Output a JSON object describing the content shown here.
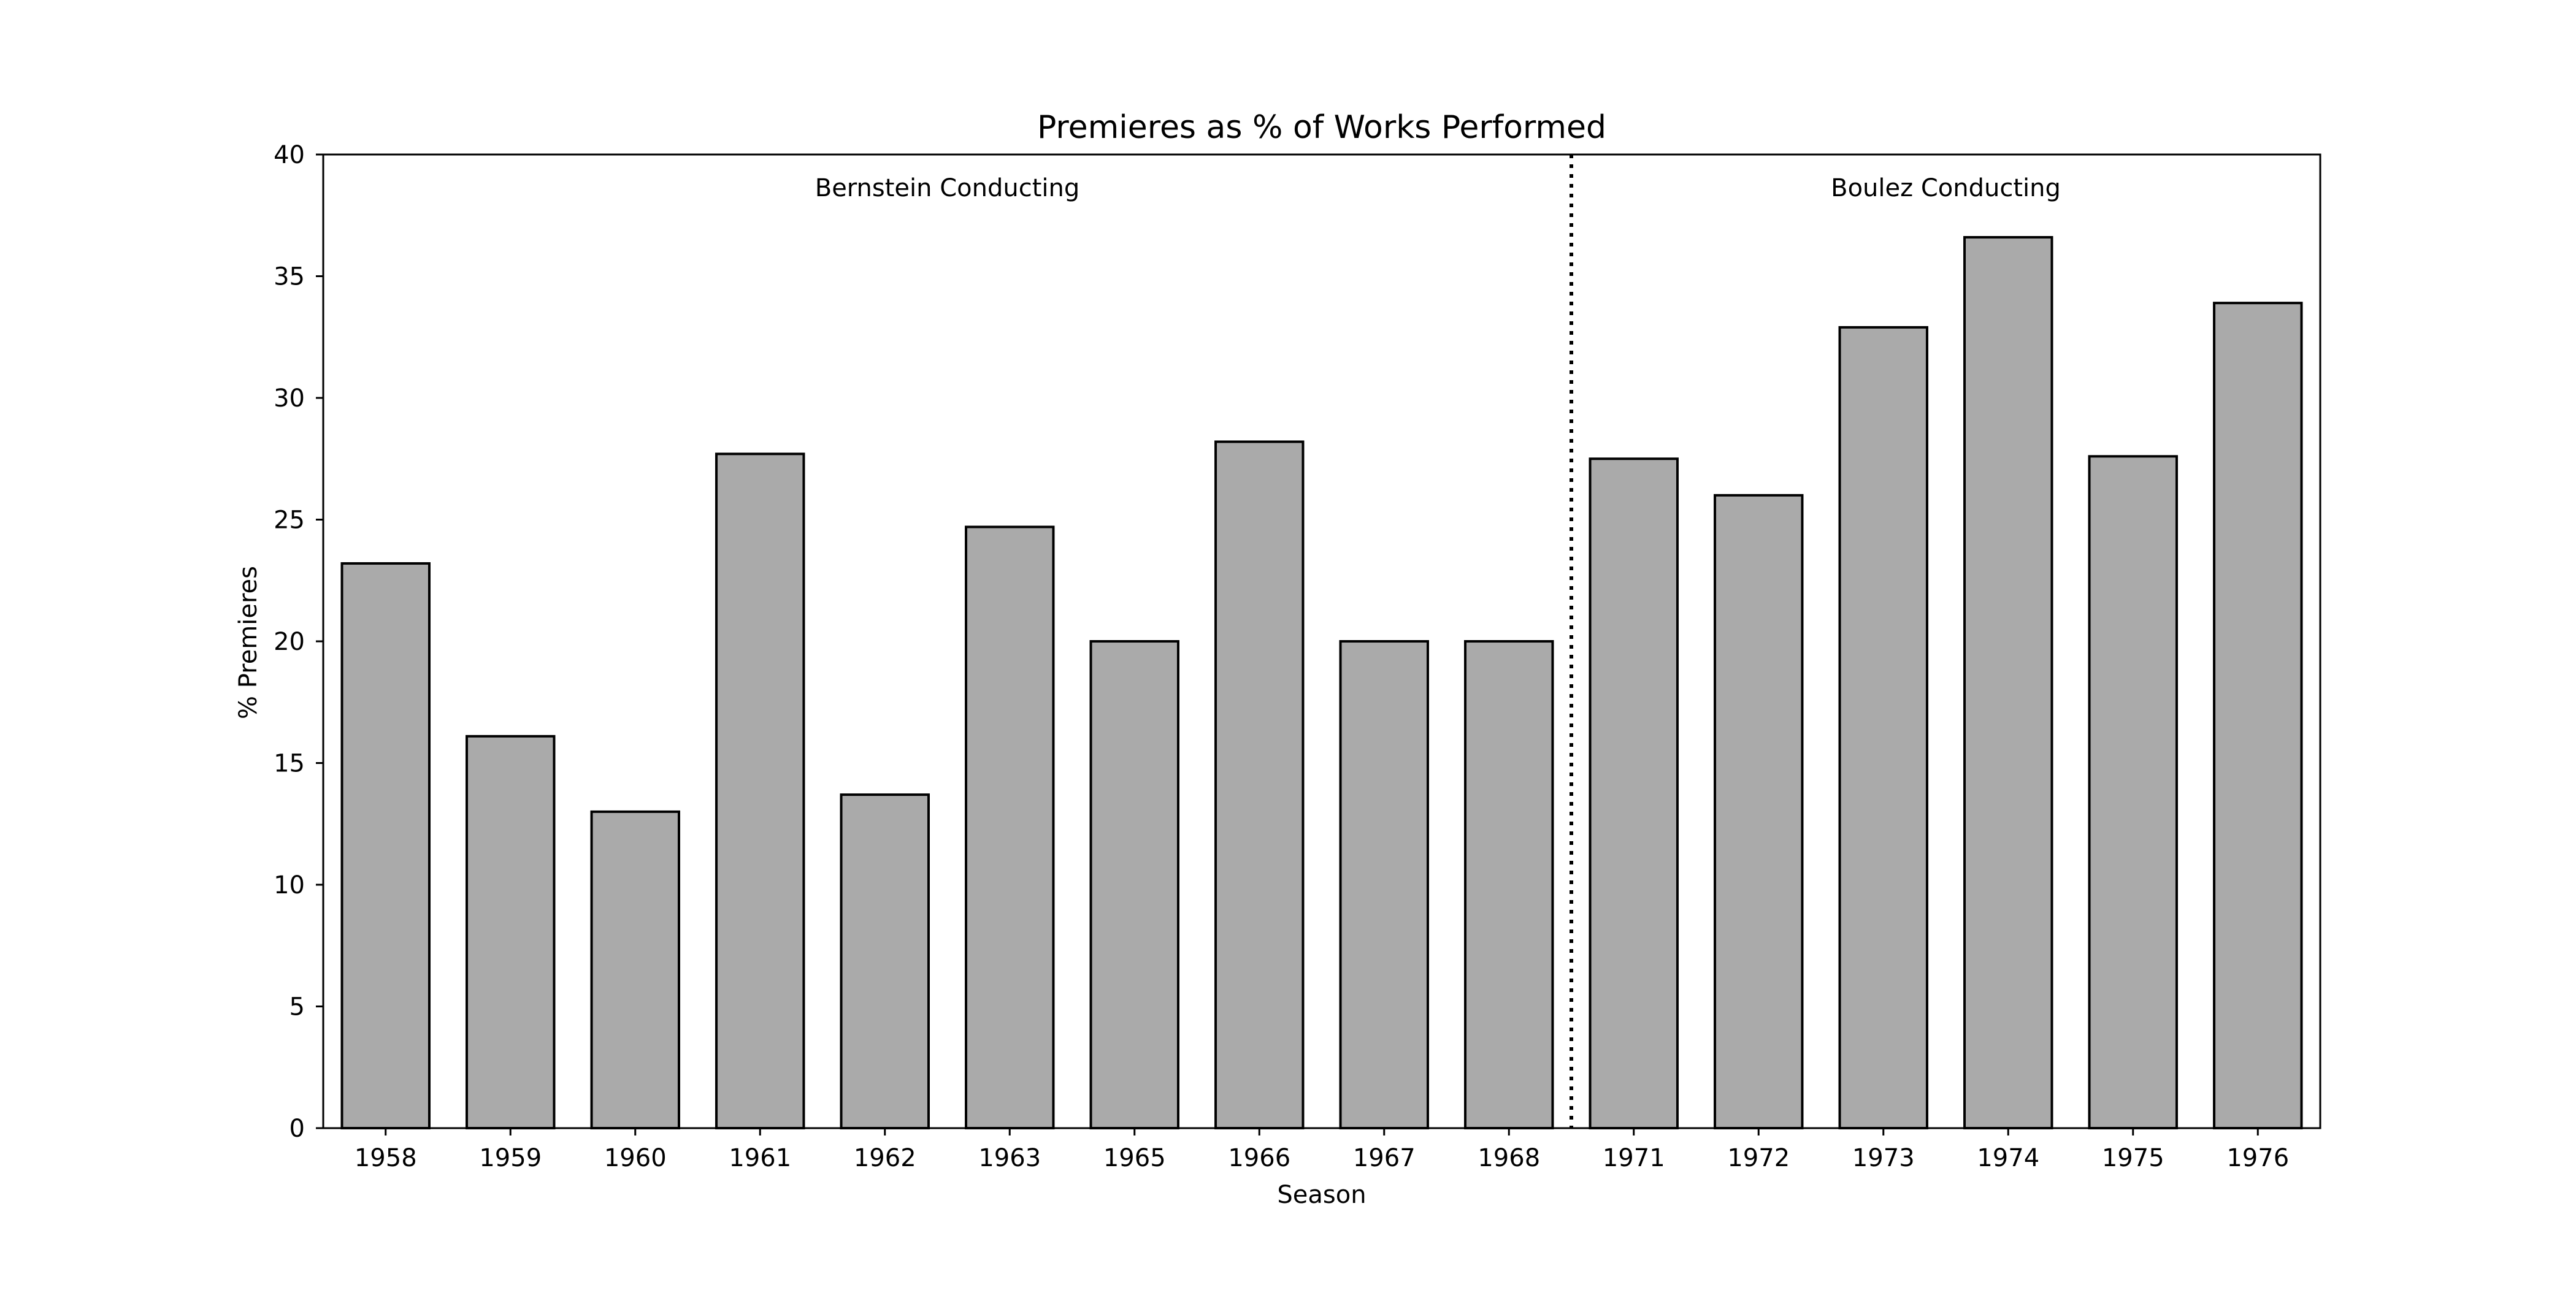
{
  "chart_data": {
    "type": "bar",
    "title": "Premieres as % of Works Performed",
    "xlabel": "Season",
    "ylabel": "% Premieres",
    "categories": [
      "1958",
      "1959",
      "1960",
      "1961",
      "1962",
      "1963",
      "1965",
      "1966",
      "1967",
      "1968",
      "1971",
      "1972",
      "1973",
      "1974",
      "1975",
      "1976"
    ],
    "values": [
      23.2,
      16.1,
      13.0,
      27.7,
      13.7,
      24.7,
      20.0,
      28.2,
      20.0,
      20.0,
      27.5,
      26.0,
      32.9,
      36.6,
      27.6,
      33.9
    ],
    "ylim": [
      0,
      40
    ],
    "yticks": [
      "0",
      "5",
      "10",
      "15",
      "20",
      "25",
      "30",
      "35",
      "40"
    ],
    "grid": false,
    "bar_color": "#aaaaaa",
    "edge_color": "#000000",
    "annotations": [
      {
        "text": "Bernstein Conducting",
        "categories_span": [
          "1958",
          "1968"
        ]
      },
      {
        "text": "Boulez Conducting",
        "categories_span": [
          "1971",
          "1976"
        ]
      }
    ],
    "divider": {
      "style": "dotted",
      "between": [
        "1968",
        "1971"
      ]
    }
  }
}
